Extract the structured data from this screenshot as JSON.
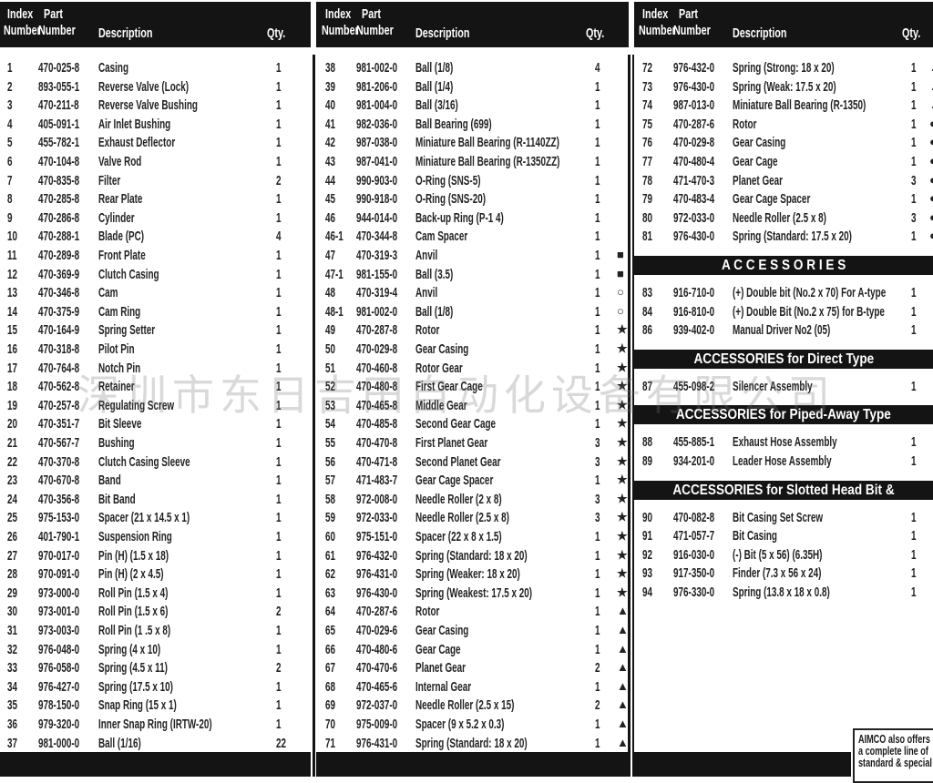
{
  "header": {
    "index": "Index",
    "index2": "Number",
    "part": "Part",
    "part2": "Number",
    "description": "Description",
    "qty": "Qty."
  },
  "columns": [
    {
      "sections": [
        {
          "rows": [
            [
              "1",
              "470-025-8",
              "Casing",
              "1",
              ""
            ],
            [
              "2",
              "893-055-1",
              "Reverse Valve (Lock)",
              "1",
              ""
            ],
            [
              "3",
              "470-211-8",
              "Reverse Valve Bushing",
              "1",
              ""
            ],
            [
              "4",
              "405-091-1",
              "Air Inlet Bushing",
              "1",
              ""
            ],
            [
              "5",
              "455-782-1",
              "Exhaust Deflector",
              "1",
              ""
            ],
            [
              "6",
              "470-104-8",
              "Valve Rod",
              "1",
              ""
            ],
            [
              "7",
              "470-835-8",
              "Filter",
              "2",
              ""
            ],
            [
              "8",
              "470-285-8",
              "Rear Plate",
              "1",
              ""
            ],
            [
              "9",
              "470-286-8",
              "Cylinder",
              "1",
              ""
            ],
            [
              "10",
              "470-288-1",
              "Blade (PC)",
              "4",
              ""
            ],
            [
              "11",
              "470-289-8",
              "Front Plate",
              "1",
              ""
            ],
            [
              "12",
              "470-369-9",
              "Clutch Casing",
              "1",
              ""
            ],
            [
              "13",
              "470-346-8",
              "Cam",
              "1",
              ""
            ],
            [
              "14",
              "470-375-9",
              "Cam Ring",
              "1",
              ""
            ],
            [
              "15",
              "470-164-9",
              "Spring Setter",
              "1",
              ""
            ],
            [
              "16",
              "470-318-8",
              "Pilot Pin",
              "1",
              ""
            ],
            [
              "17",
              "470-764-8",
              "Notch Pin",
              "1",
              ""
            ],
            [
              "18",
              "470-562-8",
              "Retainer",
              "1",
              ""
            ],
            [
              "19",
              "470-257-8",
              "Regulating Screw",
              "1",
              ""
            ],
            [
              "20",
              "470-351-7",
              "Bit Sleeve",
              "1",
              ""
            ],
            [
              "21",
              "470-567-7",
              "Bushing",
              "1",
              ""
            ],
            [
              "22",
              "470-370-8",
              "Clutch Casing Sleeve",
              "1",
              ""
            ],
            [
              "23",
              "470-670-8",
              "Band",
              "1",
              ""
            ],
            [
              "24",
              "470-356-8",
              "Bit Band",
              "1",
              ""
            ],
            [
              "25",
              "975-153-0",
              "Spacer (21 x 14.5 x 1)",
              "1",
              ""
            ],
            [
              "26",
              "401-790-1",
              "Suspension Ring",
              "1",
              ""
            ],
            [
              "27",
              "970-017-0",
              "Pin (H) (1.5 x 18)",
              "1",
              ""
            ],
            [
              "28",
              "970-091-0",
              "Pin (H) (2 x 4.5)",
              "1",
              ""
            ],
            [
              "29",
              "973-000-0",
              "Roll Pin (1.5 x 4)",
              "1",
              ""
            ],
            [
              "30",
              "973-001-0",
              "Roll Pin (1.5 x 6)",
              "2",
              ""
            ],
            [
              "31",
              "973-003-0",
              "Roll Pin (1 .5 x 8)",
              "1",
              ""
            ],
            [
              "32",
              "976-048-0",
              "Spring (4 x 10)",
              "1",
              ""
            ],
            [
              "33",
              "976-058-0",
              "Spring (4.5 x 11)",
              "2",
              ""
            ],
            [
              "34",
              "976-427-0",
              "Spring (17.5 x 10)",
              "1",
              ""
            ],
            [
              "35",
              "978-150-0",
              "Snap Ring (15 x 1)",
              "1",
              ""
            ],
            [
              "36",
              "979-320-0",
              "Inner Snap Ring (IRTW-20)",
              "1",
              ""
            ],
            [
              "37",
              "981-000-0",
              "Ball (1/16)",
              "22",
              ""
            ]
          ]
        }
      ]
    },
    {
      "sections": [
        {
          "rows": [
            [
              "38",
              "981-002-0",
              "Ball (1/8)",
              "4",
              ""
            ],
            [
              "39",
              "981-206-0",
              "Ball (1/4)",
              "1",
              ""
            ],
            [
              "40",
              "981-004-0",
              "Ball (3/16)",
              "1",
              ""
            ],
            [
              "41",
              "982-036-0",
              "Ball Bearing (699)",
              "1",
              ""
            ],
            [
              "42",
              "987-038-0",
              "Miniature Ball Bearing (R-1140ZZ)",
              "1",
              ""
            ],
            [
              "43",
              "987-041-0",
              "Miniature Ball Bearing (R-1350ZZ)",
              "1",
              ""
            ],
            [
              "44",
              "990-903-0",
              "O-Ring (SNS-5)",
              "1",
              ""
            ],
            [
              "45",
              "990-918-0",
              "O-Ring (SNS-20)",
              "1",
              ""
            ],
            [
              "46",
              "944-014-0",
              "Back-up Ring (P-1 4)",
              "1",
              ""
            ],
            [
              "46-1",
              "470-344-8",
              "Cam Spacer",
              "1",
              ""
            ],
            [
              "47",
              "470-319-3",
              "Anvil",
              "1",
              "■"
            ],
            [
              "47-1",
              "981-155-0",
              "Ball (3.5)",
              "1",
              "■"
            ],
            [
              "48",
              "470-319-4",
              "Anvil",
              "1",
              "○"
            ],
            [
              "48-1",
              "981-002-0",
              "Ball (1/8)",
              "1",
              "○"
            ],
            [
              "49",
              "470-287-8",
              "Rotor",
              "1",
              "★"
            ],
            [
              "50",
              "470-029-8",
              "Gear Casing",
              "1",
              "★"
            ],
            [
              "51",
              "470-460-8",
              "Rotor Gear",
              "1",
              "★"
            ],
            [
              "52",
              "470-480-8",
              "First Gear Cage",
              "1",
              "★"
            ],
            [
              "53",
              "470-465-8",
              "Middle Gear",
              "1",
              "★"
            ],
            [
              "54",
              "470-485-8",
              "Second Gear Cage",
              "1",
              "★"
            ],
            [
              "55",
              "470-470-8",
              "First Planet Gear",
              "3",
              "★"
            ],
            [
              "56",
              "470-471-8",
              "Second Planet Gear",
              "3",
              "★"
            ],
            [
              "57",
              "471-483-7",
              "Gear Cage Spacer",
              "1",
              "★"
            ],
            [
              "58",
              "972-008-0",
              "Needle Roller (2 x 8)",
              "3",
              "★"
            ],
            [
              "59",
              "972-033-0",
              "Needle Roller (2.5 x 8)",
              "3",
              "★"
            ],
            [
              "60",
              "975-151-0",
              "Spacer (22 x 8 x 1.5)",
              "1",
              "★"
            ],
            [
              "61",
              "976-432-0",
              "Spring (Standard: 18 x 20)",
              "1",
              "★"
            ],
            [
              "62",
              "976-431-0",
              "Spring (Weaker: 18 x 20)",
              "1",
              "★"
            ],
            [
              "63",
              "976-430-0",
              "Spring (Weakest: 17.5 x 20)",
              "1",
              "★"
            ],
            [
              "64",
              "470-287-6",
              "Rotor",
              "1",
              "▲"
            ],
            [
              "65",
              "470-029-6",
              "Gear Casing",
              "1",
              "▲"
            ],
            [
              "66",
              "470-480-6",
              "Gear Cage",
              "1",
              "▲"
            ],
            [
              "67",
              "470-470-6",
              "Planet Gear",
              "2",
              "▲"
            ],
            [
              "68",
              "470-465-6",
              "Internal Gear",
              "1",
              "▲"
            ],
            [
              "69",
              "972-037-0",
              "Needle Roller (2.5 x 15)",
              "2",
              "▲"
            ],
            [
              "70",
              "975-009-0",
              "Spacer (9 x 5.2 x 0.3)",
              "1",
              "▲"
            ],
            [
              "71",
              "976-431-0",
              "Spring (Standard: 18 x 20)",
              "1",
              "▲"
            ]
          ]
        }
      ]
    },
    {
      "sections": [
        {
          "title": "",
          "rows": [
            [
              "72",
              "976-432-0",
              "Spring (Strong: 18 x 20)",
              "1",
              "▲"
            ],
            [
              "73",
              "976-430-0",
              "Spring (Weak: 17.5 x 20)",
              "1",
              "▲"
            ],
            [
              "74",
              "987-013-0",
              "Miniature Ball Bearing (R-1350)",
              "1",
              "▲"
            ],
            [
              "75",
              "470-287-6",
              "Rotor",
              "1",
              "●"
            ],
            [
              "76",
              "470-029-8",
              "Gear Casing",
              "1",
              "●"
            ],
            [
              "77",
              "470-480-4",
              "Gear Cage",
              "1",
              "●"
            ],
            [
              "78",
              "471-470-3",
              "Planet Gear",
              "3",
              "●"
            ],
            [
              "79",
              "470-483-4",
              "Gear Cage Spacer",
              "1",
              "●"
            ],
            [
              "80",
              "972-033-0",
              "Needle Roller (2.5 x 8)",
              "3",
              "●"
            ],
            [
              "81",
              "976-430-0",
              "Spring (Standard: 17.5 x 20)",
              "1",
              "●"
            ]
          ]
        },
        {
          "title": "A C C E S S O R I E S",
          "rows": [
            [
              "83",
              "916-710-0",
              "(+) Double bit (No.2 x 70) For A-type",
              "1",
              ""
            ],
            [
              "84",
              "916-810-0",
              "(+) Double Bit (No.2 x 75) for B-type",
              "1",
              ""
            ],
            [
              "86",
              "939-402-0",
              "Manual Driver No2 (05)",
              "1",
              ""
            ]
          ]
        },
        {
          "title": "ACCESSORIES for Direct Type",
          "rows": [
            [
              "87",
              "455-098-2",
              "Silencer Assembly",
              "1",
              ""
            ]
          ]
        },
        {
          "title": "ACCESSORIES for Piped-Away Type",
          "rows": [
            [
              "88",
              "455-885-1",
              "Exhaust Hose Assembly",
              "1",
              ""
            ],
            [
              "89",
              "934-201-0",
              "Leader Hose Assembly",
              "1",
              ""
            ]
          ]
        },
        {
          "title": "ACCESSORIES for Slotted Head Bit & Finder",
          "rows": [
            [
              "90",
              "470-082-8",
              "Bit Casing Set Screw",
              "1",
              ""
            ],
            [
              "91",
              "471-057-7",
              "Bit Casing",
              "1",
              ""
            ],
            [
              "92",
              "916-030-0",
              "(-) Bit (5 x 56) (6.35H)",
              "1",
              ""
            ],
            [
              "93",
              "917-350-0",
              "Finder (7.3 x 56 x 24)",
              "1",
              ""
            ],
            [
              "94",
              "976-330-0",
              "Spring (13.8 x 18 x 0.8)",
              "1",
              ""
            ]
          ]
        }
      ]
    }
  ],
  "note": {
    "line1": "AIMCO also offers",
    "line2": "a complete line of",
    "line3": "standard & special"
  },
  "watermark": "深圳市东日吉田自动化设备有限公司"
}
